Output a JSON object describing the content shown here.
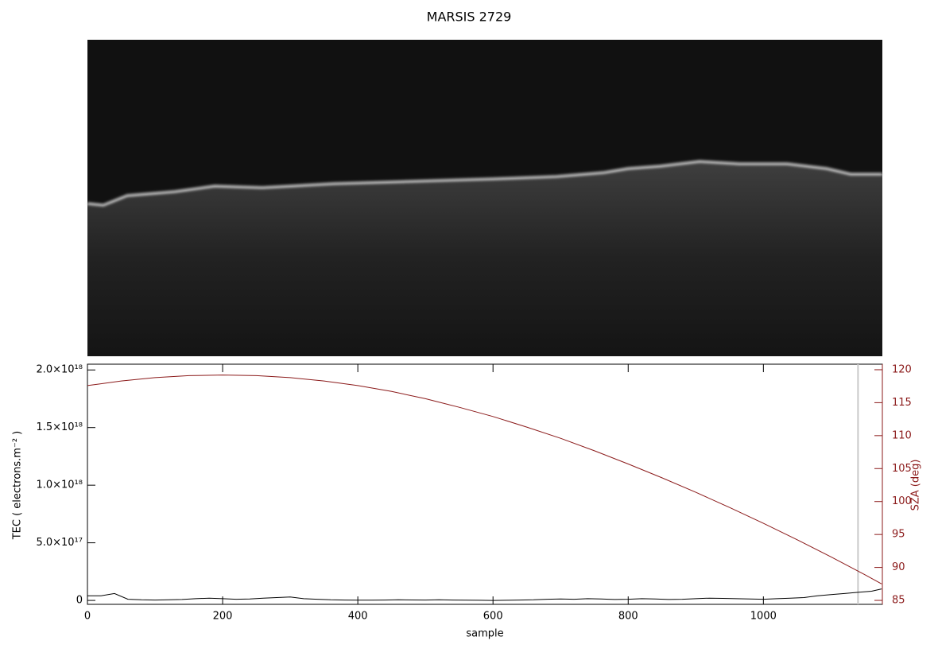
{
  "chart_data": {
    "type": "line",
    "title": "MARSIS 2729",
    "x_label": "sample",
    "y_label": "TEC ( electrons.m⁻² )",
    "y2_label": "SZA (deg)",
    "xlim": [
      0,
      1176
    ],
    "xticks": [
      0,
      200,
      400,
      600,
      800,
      1000
    ],
    "ylim": [
      -3.4e+16,
      2.05e+18
    ],
    "yticks": [
      0,
      {
        "value": 5e+17,
        "label": "5.0×10¹⁷"
      },
      {
        "value": 1e+18,
        "label": "1.0×10¹⁸"
      },
      {
        "value": 1.5e+18,
        "label": "1.5×10¹⁸"
      },
      {
        "value": 2e+18,
        "label": "2.0×10¹⁸"
      }
    ],
    "y2lim": [
      84.4,
      120.84
    ],
    "y2ticks": [
      85,
      90,
      95,
      100,
      105,
      110,
      115,
      120
    ],
    "y2color": "#8b1a1a",
    "vline": 1140,
    "vline_color": "#c8c8c8",
    "series": [
      {
        "color": "#000000",
        "x": [
          0,
          20,
          40,
          60,
          80,
          100,
          120,
          140,
          160,
          180,
          200,
          220,
          240,
          260,
          280,
          300,
          320,
          340,
          360,
          380,
          400,
          420,
          440,
          460,
          480,
          500,
          520,
          540,
          560,
          580,
          600,
          620,
          640,
          660,
          680,
          700,
          720,
          740,
          760,
          780,
          800,
          820,
          840,
          860,
          880,
          900,
          920,
          940,
          960,
          980,
          1000,
          1020,
          1040,
          1060,
          1080,
          1100,
          1120,
          1140,
          1160,
          1175
        ],
        "values": [
          4e+16,
          4e+16,
          6e+16,
          1e+16,
          5000000000000000.0,
          3000000000000000.0,
          5000000000000000.0,
          8000000000000000.0,
          1.5e+16,
          2e+16,
          1.5e+16,
          1e+16,
          1.2e+16,
          2e+16,
          2.5e+16,
          3e+16,
          1.5e+16,
          1e+16,
          5000000000000000.0,
          3000000000000000.0,
          2000000000000000.0,
          2000000000000000.0,
          3000000000000000.0,
          5000000000000000.0,
          4000000000000000.0,
          3000000000000000.0,
          5000000000000000.0,
          3000000000000000.0,
          2000000000000000.0,
          1000000000000000.0,
          0,
          1000000000000000.0,
          3000000000000000.0,
          5000000000000000.0,
          1e+16,
          1.2e+16,
          1e+16,
          1.5e+16,
          1.2e+16,
          8000000000000000.0,
          1e+16,
          1.5e+16,
          1.2e+16,
          8000000000000000.0,
          1e+16,
          1.5e+16,
          2e+16,
          1.8e+16,
          1.5e+16,
          1.2e+16,
          1e+16,
          1.5e+16,
          2e+16,
          2.5e+16,
          4e+16,
          5e+16,
          6e+16,
          7e+16,
          8e+16,
          1e+17
        ]
      },
      {
        "color": "#8b1a1a",
        "axis": "y2",
        "x": [
          0,
          50,
          100,
          150,
          200,
          250,
          300,
          350,
          400,
          450,
          500,
          550,
          600,
          650,
          700,
          750,
          800,
          850,
          900,
          950,
          1000,
          1050,
          1100,
          1150,
          1175
        ],
        "values": [
          117.6,
          118.3,
          118.8,
          119.1,
          119.2,
          119.1,
          118.8,
          118.3,
          117.6,
          116.7,
          115.6,
          114.3,
          112.9,
          111.3,
          109.6,
          107.7,
          105.7,
          103.6,
          101.4,
          99.1,
          96.7,
          94.2,
          91.6,
          88.9,
          87.5
        ]
      }
    ]
  }
}
